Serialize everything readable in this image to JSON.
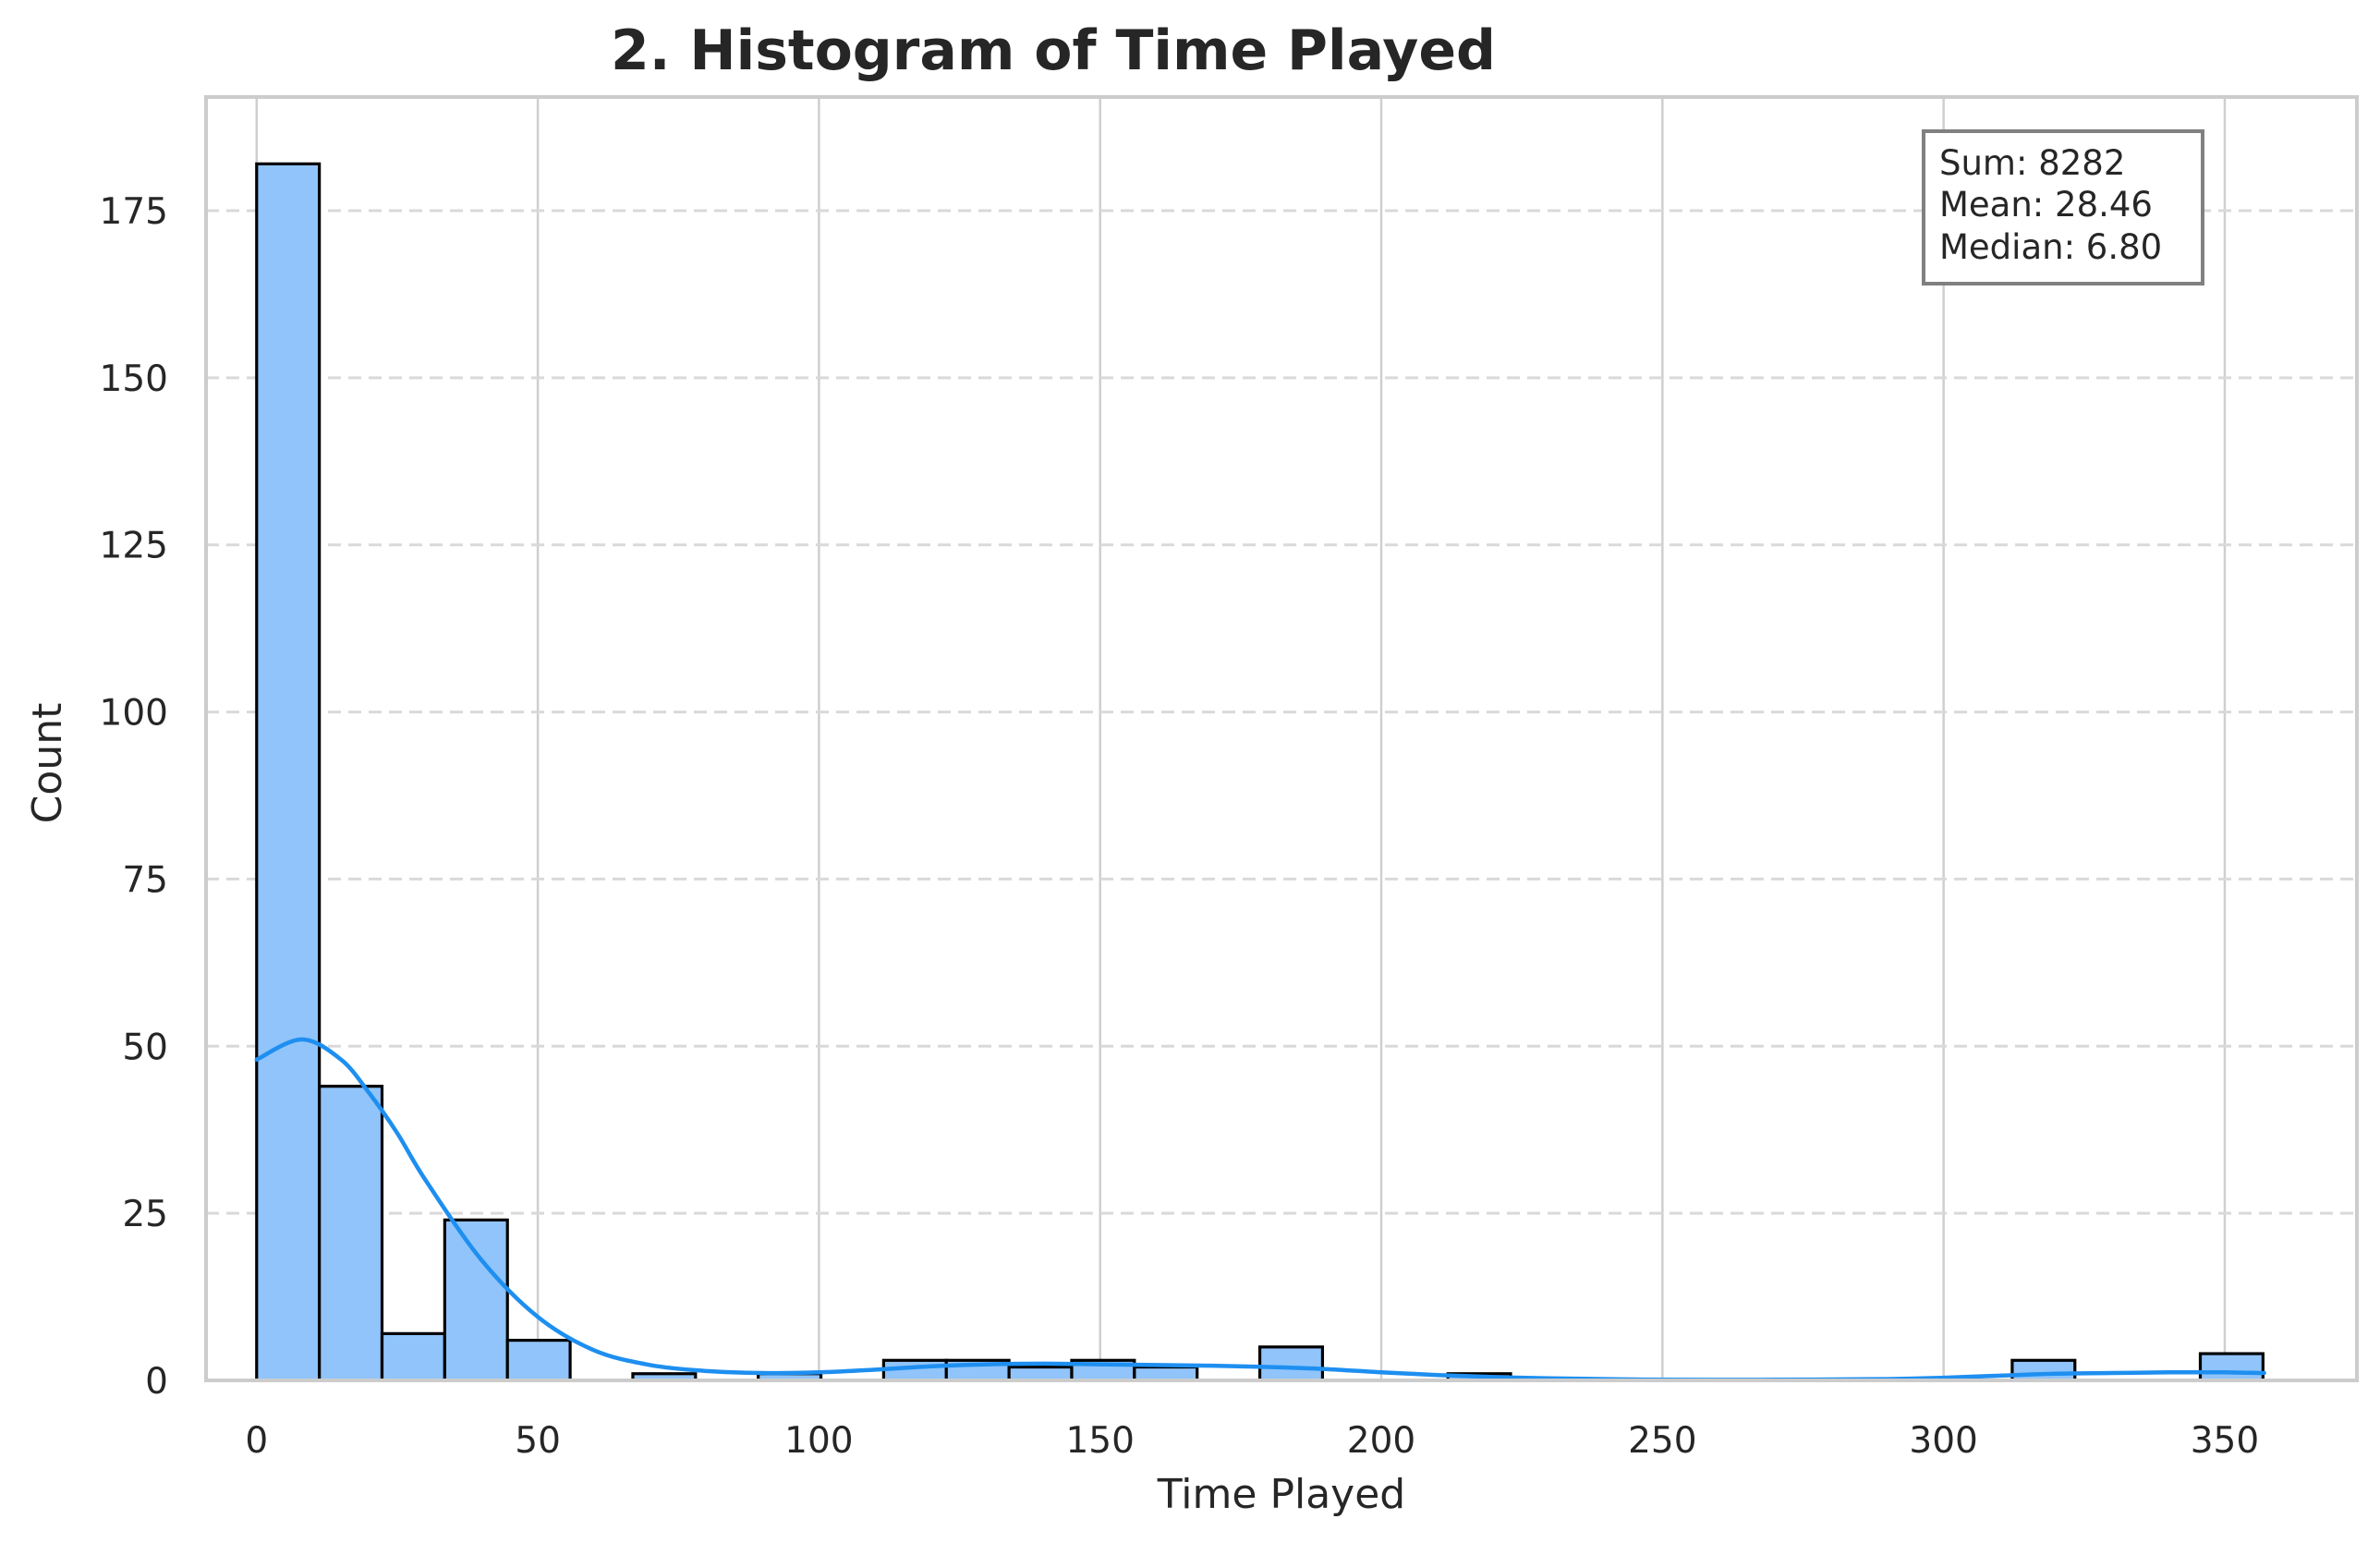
{
  "chart_data": {
    "type": "bar",
    "subtype": "histogram",
    "title": "2. Histogram of Time Played",
    "xlabel": "Time Played",
    "ylabel": "Count",
    "xlim": [
      -9,
      373.5
    ],
    "ylim": [
      0,
      192
    ],
    "xticks": [
      0,
      50,
      100,
      150,
      200,
      250,
      300,
      350
    ],
    "yticks": [
      0,
      25,
      50,
      75,
      100,
      125,
      150,
      175
    ],
    "bin_width": 11.15,
    "bin_starts": [
      0,
      11.15,
      22.3,
      33.45,
      44.6,
      55.75,
      66.9,
      78.05,
      89.2,
      100.35,
      111.5,
      122.65,
      133.8,
      144.95,
      156.1,
      167.25,
      178.4,
      189.55,
      200.7,
      211.85,
      223.0,
      234.15,
      245.3,
      256.45,
      267.6,
      278.75,
      289.9,
      301.05,
      312.2,
      323.35,
      334.5,
      345.65
    ],
    "counts": [
      182,
      44,
      7,
      24,
      6,
      0,
      1,
      0,
      1,
      0,
      3,
      3,
      2,
      3,
      2,
      0,
      5,
      0,
      0,
      1,
      0,
      0,
      0,
      0,
      0,
      0,
      0,
      0,
      3,
      0,
      0,
      4
    ],
    "kde": {
      "x": [
        0,
        8,
        15,
        20,
        25,
        30,
        40,
        50,
        60,
        70,
        80,
        90,
        100,
        110,
        120,
        130,
        140,
        150,
        160,
        170,
        180,
        190,
        200,
        210,
        220,
        230,
        250,
        270,
        290,
        300,
        310,
        320,
        330,
        340,
        350,
        357
      ],
      "y": [
        48,
        51,
        48,
        43,
        37,
        30,
        18,
        9.5,
        4.5,
        2.3,
        1.4,
        1.1,
        1.2,
        1.6,
        2.1,
        2.4,
        2.5,
        2.4,
        2.3,
        2.2,
        2.0,
        1.7,
        1.2,
        0.8,
        0.5,
        0.3,
        0.1,
        0.1,
        0.2,
        0.4,
        0.7,
        1.0,
        1.1,
        1.2,
        1.2,
        1.1
      ]
    },
    "stats": {
      "sum": "Sum: 8282",
      "mean": "Mean: 28.46",
      "median": "Median: 6.80"
    },
    "stats_box_position": "top-right",
    "grid": true,
    "colors": {
      "bar_fill": "#90c4fa",
      "bar_edge": "#000000",
      "kde_line": "#1e8ff0",
      "grid": "#cfcfcf",
      "spine": "#cccccc",
      "text": "#262626"
    }
  }
}
